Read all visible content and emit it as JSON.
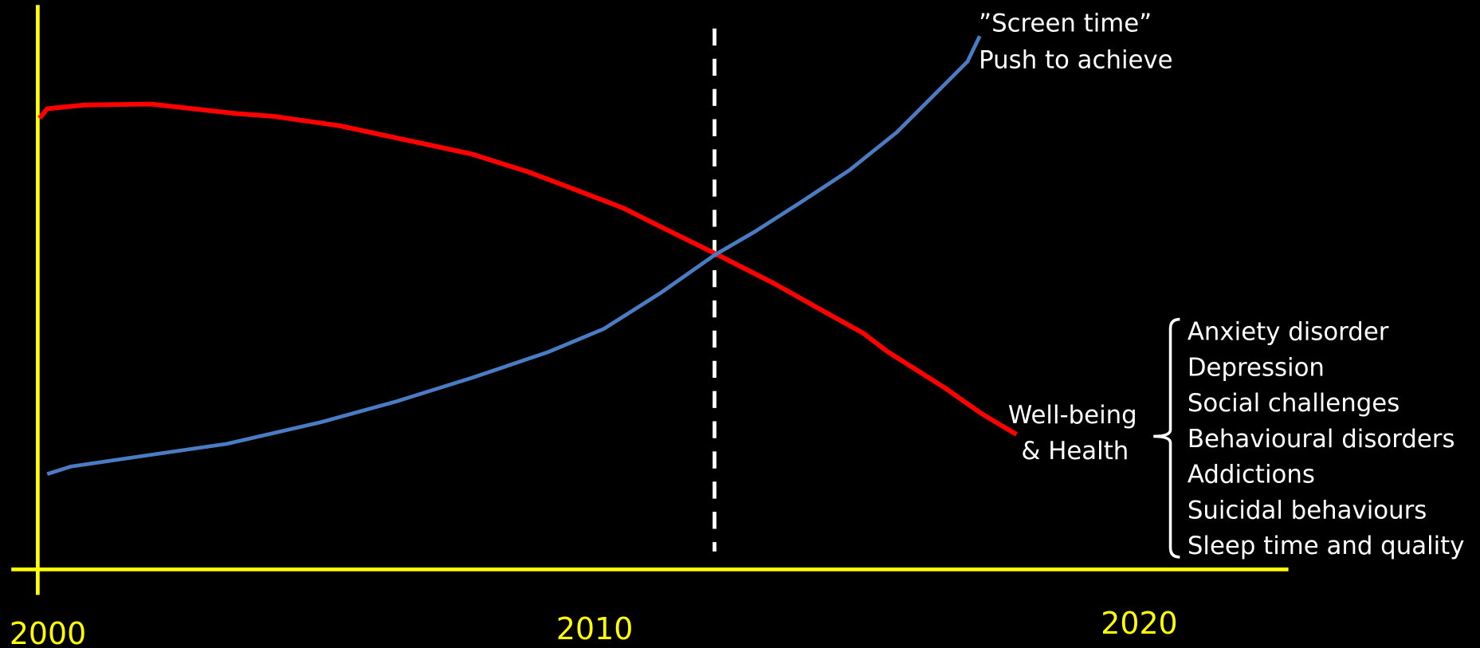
{
  "x_axis": {
    "labels": [
      "2000",
      "2010",
      "2020"
    ]
  },
  "curves": {
    "screen_time": {
      "label_lines": [
        "”Screen time”",
        "Push to achieve"
      ]
    },
    "well_being": {
      "label_lines": [
        "Well-being",
        "& Health"
      ]
    }
  },
  "outcomes": [
    "Anxiety disorder",
    "Depression",
    "Social challenges",
    "Behavioural disorders",
    "Addictions",
    "Suicidal behaviours",
    "Sleep time and quality"
  ]
}
